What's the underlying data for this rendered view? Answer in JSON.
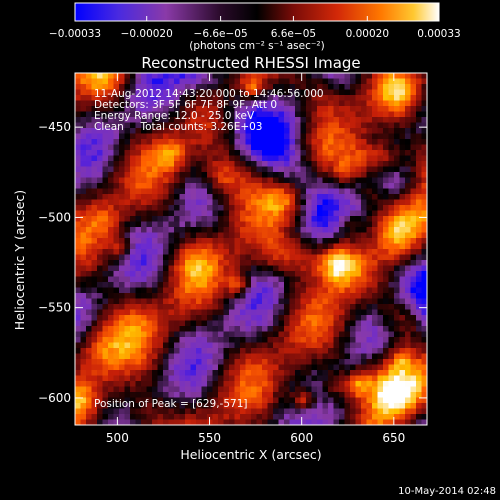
{
  "chart_data": {
    "type": "heatmap",
    "title": "Reconstructed RHESSI Image",
    "xlabel": "Heliocentric X (arcsec)",
    "ylabel": "Heliocentric Y (arcsec)",
    "xlim": [
      477,
      668
    ],
    "ylim": [
      -615,
      -420
    ],
    "x_ticks": [
      500,
      550,
      600,
      650
    ],
    "x_tick_labels": [
      "500",
      "550",
      "600",
      "650"
    ],
    "y_ticks": [
      -450,
      -500,
      -550,
      -600
    ],
    "y_tick_labels": [
      "−450",
      "−500",
      "−550",
      "−600"
    ],
    "annotations": [
      "11-Aug-2012 14:43:20.000 to 14:46:56.000",
      "Detectors: 3F 5F 6F 7F 8F 9F, Att 0",
      "Energy Range: 12.0 - 25.0 keV",
      "Clean     Total counts: 3.26E+03"
    ],
    "peak_label": "Position of Peak = [629,-571]",
    "peak_position": [
      629,
      -571
    ],
    "colorbar": {
      "range": [
        -0.00033,
        0.00033
      ],
      "tick_values": [
        -0.00033,
        -0.0002,
        -6.6e-05,
        6.6e-05,
        0.0002,
        0.00033
      ],
      "tick_labels": [
        "−0.00033",
        "−0.00020",
        "−6.6e−05",
        "6.6e−05",
        "0.00020",
        "0.00033"
      ],
      "units_label": "(photons cm⁻² s⁻¹ asec⁻²)",
      "colors": [
        "#0000ff",
        "#6a2ad0",
        "#8a3aa8",
        "#000000",
        "#6a0a0a",
        "#c82008",
        "#ff6000",
        "#ffc000",
        "#ffffff"
      ]
    }
  },
  "timestamp": "10-May-2014 02:48"
}
